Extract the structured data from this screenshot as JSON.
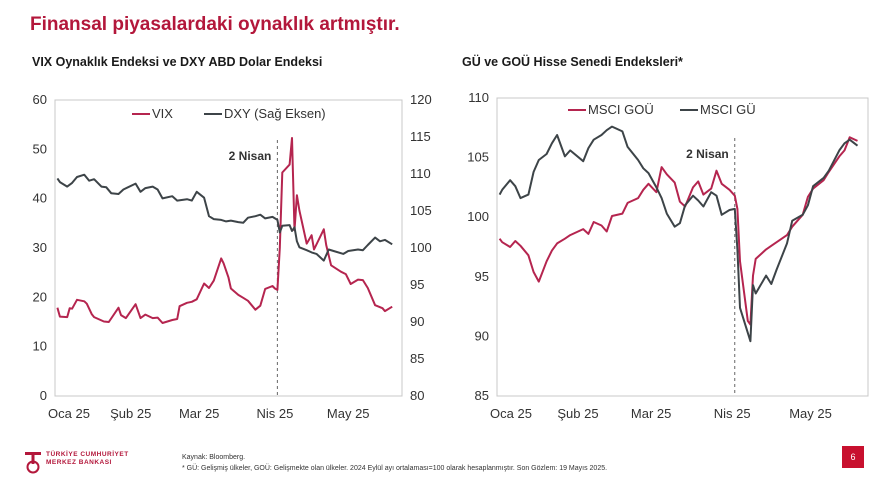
{
  "slide": {
    "title": "Finansal piyasalardaki oynaklık artmıştır.",
    "page_number": "6"
  },
  "footer": {
    "logo_line1": "TÜRKİYE CUMHURİYET",
    "logo_line2": "MERKEZ BANKASI",
    "source": "Kaynak: Bloomberg.",
    "note": "* GÜ: Gelişmiş ülkeler, GOÜ: Gelişmekte olan ülkeler. 2024 Eylül ayı ortalaması=100 olarak hesaplanmıştır. Son Gözlem: 19 Mayıs 2025."
  },
  "colors": {
    "title": "#b3173b",
    "series_red": "#b5254f",
    "series_dark": "#3d4448"
  },
  "chart_data": [
    {
      "type": "line",
      "title": "VIX Oynaklık Endeksi ve DXY ABD Dolar Endeksi",
      "x_tick_labels": [
        "Oca 25",
        "Şub 25",
        "Mar 25",
        "Nis 25",
        "May 25"
      ],
      "y_left": {
        "ticks": [
          "0",
          "10",
          "20",
          "30",
          "40",
          "50",
          "60"
        ],
        "lim": [
          0,
          60
        ]
      },
      "y_right": {
        "ticks": [
          "80",
          "85",
          "90",
          "95",
          "100",
          "105",
          "110",
          "115",
          "120"
        ],
        "lim": [
          80,
          120
        ]
      },
      "annotation": "2 Nisan",
      "legend": {
        "position": "top",
        "entries": [
          "VIX",
          "DXY (Sağ Eksen)"
        ]
      },
      "series": [
        {
          "name": "VIX",
          "axis": "left",
          "color": "#b5254f",
          "x": [
            "2025-01-02",
            "2025-01-03",
            "2025-01-06",
            "2025-01-07",
            "2025-01-08",
            "2025-01-10",
            "2025-01-13",
            "2025-01-14",
            "2025-01-16",
            "2025-01-17",
            "2025-01-21",
            "2025-01-23",
            "2025-01-27",
            "2025-01-28",
            "2025-01-30",
            "2025-02-03",
            "2025-02-05",
            "2025-02-07",
            "2025-02-10",
            "2025-02-12",
            "2025-02-14",
            "2025-02-18",
            "2025-02-20",
            "2025-02-21",
            "2025-02-24",
            "2025-02-26",
            "2025-02-28",
            "2025-03-03",
            "2025-03-05",
            "2025-03-07",
            "2025-03-10",
            "2025-03-11",
            "2025-03-13",
            "2025-03-14",
            "2025-03-17",
            "2025-03-19",
            "2025-03-21",
            "2025-03-24",
            "2025-03-26",
            "2025-03-28",
            "2025-03-31",
            "2025-04-01",
            "2025-04-02",
            "2025-04-03",
            "2025-04-04",
            "2025-04-07",
            "2025-04-08",
            "2025-04-09",
            "2025-04-10",
            "2025-04-11",
            "2025-04-14",
            "2025-04-16",
            "2025-04-17",
            "2025-04-21",
            "2025-04-22",
            "2025-04-24",
            "2025-04-28",
            "2025-04-30",
            "2025-05-02",
            "2025-05-05",
            "2025-05-07",
            "2025-05-09",
            "2025-05-12",
            "2025-05-13",
            "2025-05-15",
            "2025-05-16",
            "2025-05-19"
          ],
          "values": [
            17.9,
            16.1,
            16.0,
            17.8,
            17.7,
            19.5,
            19.2,
            18.7,
            16.6,
            16.0,
            15.1,
            15.0,
            17.9,
            16.4,
            15.8,
            18.6,
            15.8,
            16.5,
            15.8,
            15.9,
            14.8,
            15.4,
            15.6,
            18.2,
            18.9,
            19.1,
            19.6,
            22.8,
            21.9,
            23.4,
            27.9,
            26.9,
            24.0,
            21.8,
            20.5,
            19.9,
            19.3,
            17.5,
            18.3,
            21.7,
            22.3,
            21.8,
            21.5,
            30.0,
            45.3,
            46.9,
            52.3,
            33.6,
            40.7,
            37.6,
            30.9,
            32.6,
            29.7,
            33.8,
            30.6,
            26.5,
            25.2,
            24.7,
            22.7,
            23.6,
            23.5,
            21.9,
            18.4,
            18.2,
            17.8,
            17.2,
            18.1
          ]
        },
        {
          "name": "DXY (Sağ Eksen)",
          "axis": "right",
          "color": "#3d4448",
          "x": [
            "2025-01-02",
            "2025-01-03",
            "2025-01-06",
            "2025-01-08",
            "2025-01-10",
            "2025-01-13",
            "2025-01-15",
            "2025-01-17",
            "2025-01-20",
            "2025-01-22",
            "2025-01-24",
            "2025-01-27",
            "2025-01-29",
            "2025-02-03",
            "2025-02-05",
            "2025-02-07",
            "2025-02-10",
            "2025-02-12",
            "2025-02-14",
            "2025-02-18",
            "2025-02-20",
            "2025-02-24",
            "2025-02-26",
            "2025-02-28",
            "2025-03-03",
            "2025-03-05",
            "2025-03-07",
            "2025-03-10",
            "2025-03-12",
            "2025-03-14",
            "2025-03-17",
            "2025-03-19",
            "2025-03-21",
            "2025-03-24",
            "2025-03-26",
            "2025-03-28",
            "2025-03-31",
            "2025-04-02",
            "2025-04-03",
            "2025-04-04",
            "2025-04-07",
            "2025-04-08",
            "2025-04-09",
            "2025-04-10",
            "2025-04-11",
            "2025-04-14",
            "2025-04-16",
            "2025-04-18",
            "2025-04-21",
            "2025-04-23",
            "2025-04-25",
            "2025-04-29",
            "2025-05-01",
            "2025-05-05",
            "2025-05-07",
            "2025-05-09",
            "2025-05-12",
            "2025-05-14",
            "2025-05-16",
            "2025-05-19"
          ],
          "values": [
            109.4,
            108.9,
            108.3,
            108.8,
            109.6,
            109.9,
            109.1,
            109.3,
            108.3,
            108.2,
            107.4,
            107.3,
            107.9,
            108.7,
            107.6,
            108.1,
            108.3,
            107.9,
            106.7,
            107.0,
            106.4,
            106.6,
            106.4,
            107.6,
            106.8,
            104.3,
            103.9,
            103.8,
            103.6,
            103.7,
            103.5,
            103.4,
            104.1,
            104.3,
            104.5,
            104.0,
            104.2,
            103.8,
            102.1,
            103.0,
            103.1,
            102.3,
            102.8,
            100.9,
            100.1,
            99.7,
            99.4,
            99.2,
            98.3,
            99.8,
            99.6,
            99.2,
            99.6,
            99.8,
            99.7,
            100.4,
            101.4,
            100.9,
            101.1,
            100.5
          ]
        }
      ]
    },
    {
      "type": "line",
      "title": "GÜ ve GOÜ Hisse Senedi Endeksleri*",
      "x_tick_labels": [
        "Oca 25",
        "Şub 25",
        "Mar 25",
        "Nis 25",
        "May 25"
      ],
      "y": {
        "ticks": [
          "85",
          "90",
          "95",
          "100",
          "105",
          "110"
        ],
        "lim": [
          85,
          110
        ]
      },
      "annotation": "2 Nisan",
      "legend": {
        "position": "top",
        "entries": [
          "MSCI GOÜ",
          "MSCI GÜ"
        ]
      },
      "series": [
        {
          "name": "MSCI GOÜ",
          "color": "#b5254f",
          "x": [
            "2025-01-02",
            "2025-01-03",
            "2025-01-06",
            "2025-01-08",
            "2025-01-10",
            "2025-01-13",
            "2025-01-15",
            "2025-01-17",
            "2025-01-20",
            "2025-01-22",
            "2025-01-24",
            "2025-01-27",
            "2025-01-29",
            "2025-02-03",
            "2025-02-05",
            "2025-02-07",
            "2025-02-10",
            "2025-02-12",
            "2025-02-14",
            "2025-02-18",
            "2025-02-20",
            "2025-02-24",
            "2025-02-26",
            "2025-02-28",
            "2025-03-03",
            "2025-03-05",
            "2025-03-07",
            "2025-03-10",
            "2025-03-12",
            "2025-03-14",
            "2025-03-17",
            "2025-03-19",
            "2025-03-21",
            "2025-03-24",
            "2025-03-26",
            "2025-03-28",
            "2025-03-31",
            "2025-04-02",
            "2025-04-03",
            "2025-04-04",
            "2025-04-07",
            "2025-04-08",
            "2025-04-09",
            "2025-04-10",
            "2025-04-14",
            "2025-04-16",
            "2025-04-18",
            "2025-04-22",
            "2025-04-24",
            "2025-04-28",
            "2025-04-30",
            "2025-05-02",
            "2025-05-06",
            "2025-05-08",
            "2025-05-12",
            "2025-05-14",
            "2025-05-16",
            "2025-05-19"
          ],
          "values": [
            98.2,
            97.9,
            97.5,
            98.0,
            97.6,
            96.8,
            95.4,
            94.6,
            96.3,
            97.2,
            97.8,
            98.2,
            98.5,
            99.0,
            98.6,
            99.6,
            99.3,
            98.8,
            100.1,
            100.3,
            101.2,
            101.6,
            102.3,
            102.8,
            102.1,
            104.2,
            103.6,
            102.9,
            101.3,
            100.9,
            102.5,
            103.0,
            101.9,
            102.4,
            103.9,
            102.8,
            102.3,
            101.8,
            100.7,
            96.3,
            91.3,
            91.0,
            95.1,
            96.5,
            97.3,
            97.6,
            97.9,
            98.5,
            99.2,
            100.2,
            101.7,
            102.4,
            103.1,
            103.8,
            105.1,
            105.6,
            106.7,
            106.4
          ]
        },
        {
          "name": "MSCI GÜ",
          "color": "#3d4448",
          "x": [
            "2025-01-02",
            "2025-01-03",
            "2025-01-06",
            "2025-01-08",
            "2025-01-10",
            "2025-01-13",
            "2025-01-15",
            "2025-01-17",
            "2025-01-20",
            "2025-01-22",
            "2025-01-24",
            "2025-01-27",
            "2025-01-29",
            "2025-02-03",
            "2025-02-05",
            "2025-02-07",
            "2025-02-10",
            "2025-02-12",
            "2025-02-14",
            "2025-02-18",
            "2025-02-20",
            "2025-02-24",
            "2025-02-26",
            "2025-02-28",
            "2025-03-03",
            "2025-03-05",
            "2025-03-07",
            "2025-03-10",
            "2025-03-12",
            "2025-03-14",
            "2025-03-17",
            "2025-03-19",
            "2025-03-21",
            "2025-03-24",
            "2025-03-26",
            "2025-03-28",
            "2025-03-31",
            "2025-04-02",
            "2025-04-03",
            "2025-04-04",
            "2025-04-07",
            "2025-04-08",
            "2025-04-09",
            "2025-04-10",
            "2025-04-14",
            "2025-04-16",
            "2025-04-18",
            "2025-04-22",
            "2025-04-24",
            "2025-04-28",
            "2025-04-30",
            "2025-05-02",
            "2025-05-06",
            "2025-05-08",
            "2025-05-12",
            "2025-05-14",
            "2025-05-16",
            "2025-05-19"
          ],
          "values": [
            101.9,
            102.3,
            103.1,
            102.6,
            101.6,
            101.9,
            103.8,
            104.8,
            105.3,
            106.2,
            106.9,
            105.1,
            105.6,
            104.7,
            105.8,
            106.5,
            106.9,
            107.3,
            107.6,
            107.2,
            105.9,
            104.8,
            104.1,
            103.7,
            102.5,
            101.6,
            100.3,
            99.2,
            99.5,
            101.0,
            101.8,
            101.4,
            100.9,
            102.1,
            101.8,
            100.2,
            100.6,
            100.7,
            97.3,
            92.4,
            90.3,
            89.6,
            94.3,
            93.6,
            95.1,
            94.4,
            95.6,
            97.8,
            99.7,
            100.2,
            101.0,
            102.6,
            103.3,
            103.9,
            105.6,
            106.2,
            106.5,
            106.0
          ]
        }
      ]
    }
  ]
}
